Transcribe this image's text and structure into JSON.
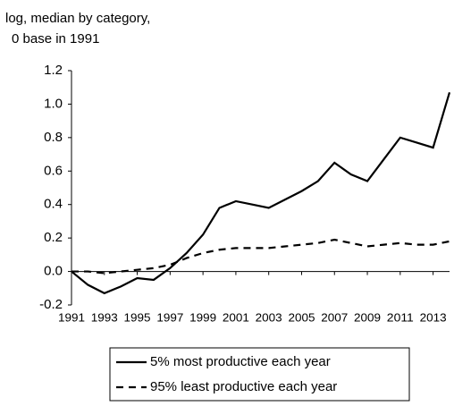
{
  "chart_data": {
    "type": "line",
    "title_lines": [
      "log, median by category,",
      "0 base in 1991"
    ],
    "x": [
      1991,
      1992,
      1993,
      1994,
      1995,
      1996,
      1997,
      1998,
      1999,
      2000,
      2001,
      2002,
      2003,
      2004,
      2005,
      2006,
      2007,
      2008,
      2009,
      2010,
      2011,
      2012,
      2013,
      2014
    ],
    "series": [
      {
        "name": "5% most productive each year",
        "color": "#000000",
        "dash": "solid",
        "values": [
          0,
          -0.08,
          -0.13,
          -0.09,
          -0.04,
          -0.05,
          0.02,
          0.11,
          0.22,
          0.38,
          0.42,
          0.4,
          0.38,
          0.43,
          0.48,
          0.54,
          0.65,
          0.58,
          0.54,
          0.67,
          0.8,
          0.77,
          0.74,
          1.07
        ]
      },
      {
        "name": "95% least productive each year",
        "color": "#000000",
        "dash": "dashed",
        "values": [
          0,
          0,
          -0.01,
          0,
          0.01,
          0.02,
          0.04,
          0.08,
          0.11,
          0.13,
          0.14,
          0.14,
          0.14,
          0.15,
          0.16,
          0.17,
          0.19,
          0.17,
          0.15,
          0.16,
          0.17,
          0.16,
          0.16,
          0.18
        ]
      }
    ],
    "xlim": [
      1991,
      2014
    ],
    "xticks": [
      1991,
      1993,
      1995,
      1997,
      1999,
      2001,
      2003,
      2005,
      2007,
      2009,
      2011,
      2013
    ],
    "ylim": [
      -0.2,
      1.2
    ],
    "yticks": [
      -0.2,
      {
        "value": 0,
        "label": "0.0"
      },
      0.2,
      0.4,
      0.6,
      0.8,
      {
        "value": 1,
        "label": "1.0"
      },
      1.2
    ],
    "legend": "bottom",
    "grid": false
  }
}
